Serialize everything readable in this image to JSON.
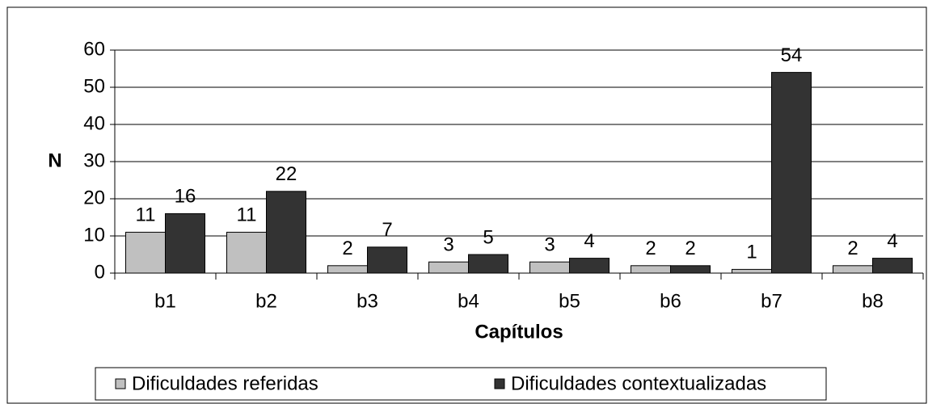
{
  "chart_data": {
    "type": "bar",
    "x_label": "Capítulos",
    "y_label": "N",
    "categories": [
      "b1",
      "b2",
      "b3",
      "b4",
      "b5",
      "b6",
      "b7",
      "b8"
    ],
    "series": [
      {
        "name": "Dificuldades referidas",
        "color": "#c0c0c0",
        "values": [
          11,
          11,
          2,
          3,
          3,
          2,
          1,
          2
        ]
      },
      {
        "name": "Dificuldades contextualizadas",
        "color": "#333333",
        "values": [
          16,
          22,
          7,
          5,
          4,
          2,
          54,
          4
        ]
      }
    ],
    "ylim": [
      0,
      60
    ],
    "yticks": [
      0,
      10,
      20,
      30,
      40,
      50,
      60
    ],
    "grid": true,
    "legend": "bottom"
  }
}
